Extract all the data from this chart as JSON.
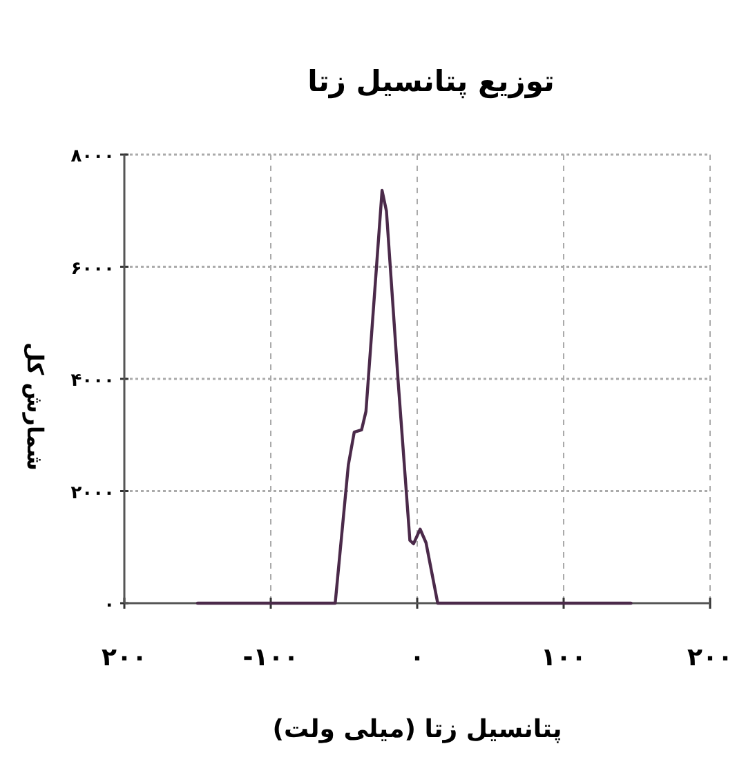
{
  "chart_data": {
    "type": "line",
    "title": "توزیع پتانسیل زتا",
    "xlabel": "پتانسیل زتا (میلی ولت)",
    "ylabel": "شمارش کل",
    "x": [
      -150,
      -56,
      -47,
      -43,
      -38,
      -35,
      -24,
      -21,
      -13,
      -5,
      -2.5,
      2,
      6,
      14,
      146
    ],
    "series": [
      {
        "color": "#4b2a4a",
        "values": [
          0,
          0,
          2470,
          3050,
          3090,
          3420,
          7360,
          6990,
          3950,
          1120,
          1060,
          1320,
          1080,
          0,
          0
        ]
      }
    ],
    "xlim": [
      -200,
      200
    ],
    "ylim": [
      0,
      8000
    ],
    "xticks": [
      {
        "value": -200,
        "label": "۲۰۰"
      },
      {
        "value": -100,
        "label": "-۱۰۰"
      },
      {
        "value": 0,
        "label": "۰"
      },
      {
        "value": 100,
        "label": "۱۰۰"
      },
      {
        "value": 200,
        "label": "۲۰۰"
      }
    ],
    "yticks": [
      {
        "value": 0,
        "label": "۰"
      },
      {
        "value": 2000,
        "label": "۲۰۰۰"
      },
      {
        "value": 4000,
        "label": "۴۰۰۰"
      },
      {
        "value": 6000,
        "label": "۶۰۰۰"
      },
      {
        "value": 8000,
        "label": "۸۰۰۰"
      }
    ],
    "grid": true,
    "marker": "none",
    "line_style": "solid"
  }
}
